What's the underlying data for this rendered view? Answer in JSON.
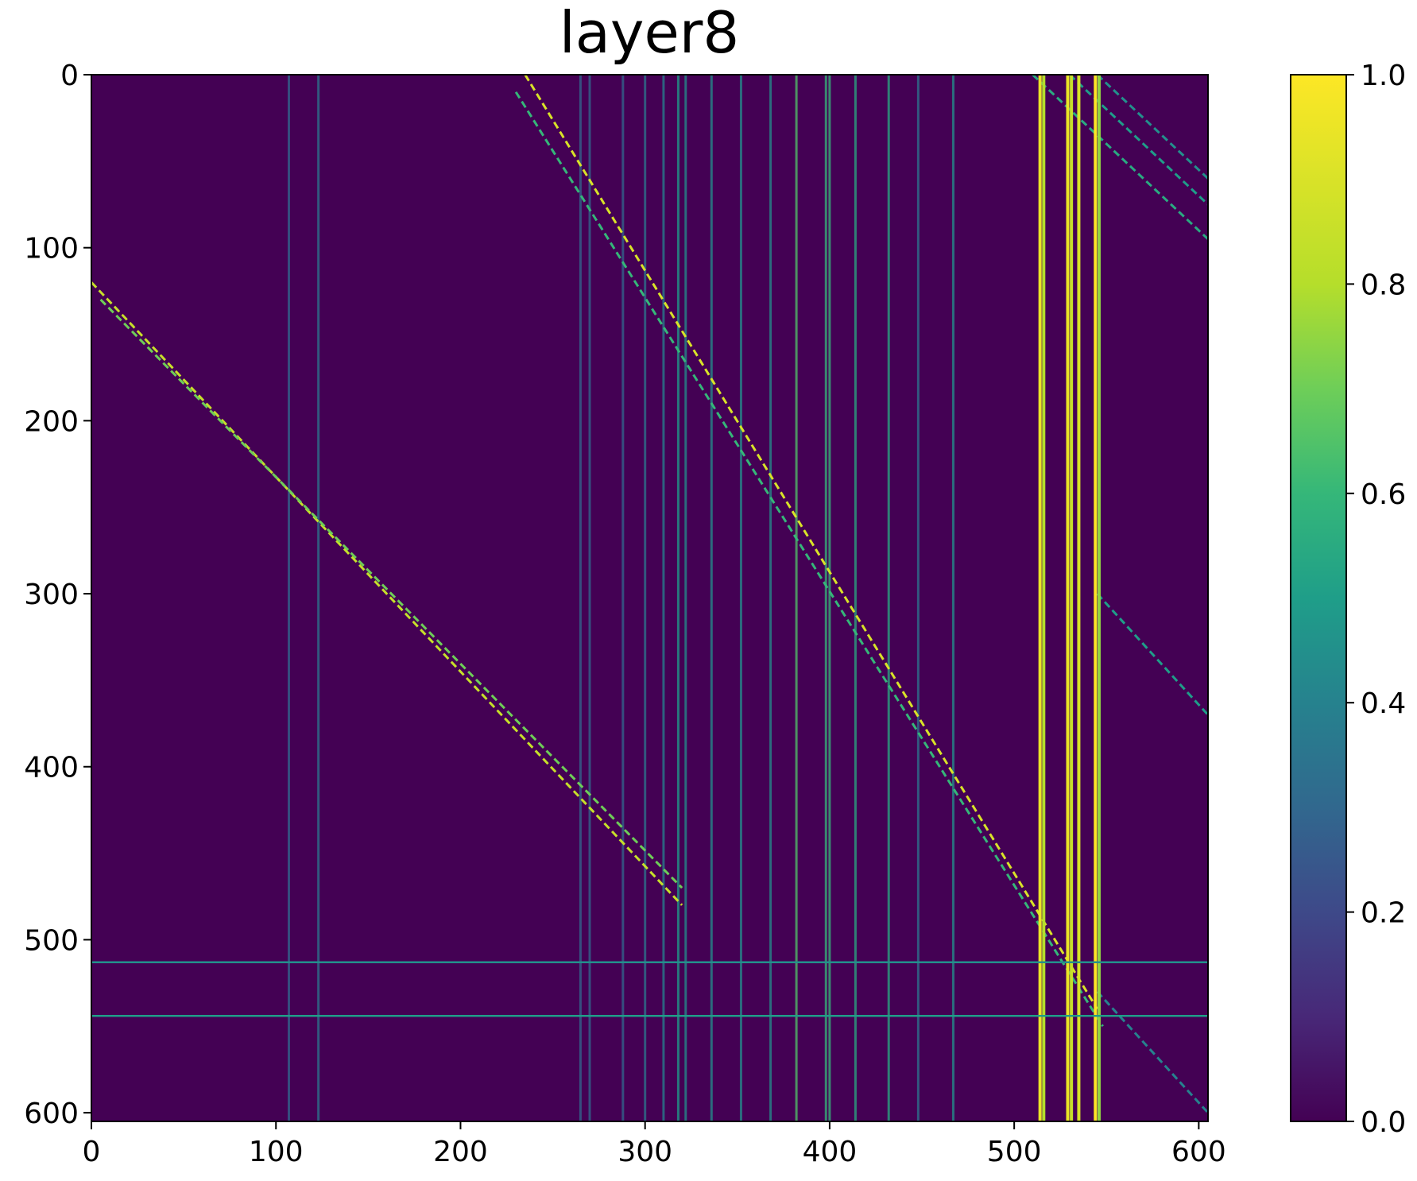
{
  "chart_data": {
    "type": "heatmap",
    "title": "layer8",
    "xlabel": "",
    "ylabel": "",
    "xlim": [
      0,
      605
    ],
    "ylim": [
      605,
      0
    ],
    "x_ticks": [
      "0",
      "100",
      "200",
      "300",
      "400",
      "500",
      "600"
    ],
    "y_ticks": [
      "0",
      "100",
      "200",
      "300",
      "400",
      "500",
      "600"
    ],
    "colormap": "viridis",
    "colorbar": {
      "range": [
        0.0,
        1.0
      ],
      "ticks": [
        "0.0",
        "0.2",
        "0.4",
        "0.6",
        "0.8",
        "1.0"
      ]
    },
    "features": {
      "diagonals": [
        {
          "row_start": 120,
          "col_start": 0,
          "row_end": 480,
          "col_end": 320,
          "intensity": 0.85
        },
        {
          "row_start": 130,
          "col_start": 5,
          "row_end": 470,
          "col_end": 320,
          "intensity": 0.7
        },
        {
          "row_start": 0,
          "col_start": 235,
          "row_end": 540,
          "col_end": 545,
          "intensity": 0.9
        },
        {
          "row_start": 10,
          "col_start": 230,
          "row_end": 550,
          "col_end": 548,
          "intensity": 0.6
        },
        {
          "row_start": 0,
          "col_start": 510,
          "row_end": 95,
          "col_end": 605,
          "intensity": 0.55
        },
        {
          "row_start": 0,
          "col_start": 530,
          "row_end": 75,
          "col_end": 605,
          "intensity": 0.5
        },
        {
          "row_start": 0,
          "col_start": 545,
          "row_end": 60,
          "col_end": 605,
          "intensity": 0.45
        },
        {
          "row_start": 300,
          "col_start": 545,
          "row_end": 370,
          "col_end": 605,
          "intensity": 0.5
        },
        {
          "row_start": 530,
          "col_start": 545,
          "row_end": 600,
          "col_end": 605,
          "intensity": 0.4
        }
      ],
      "bright_columns": [
        {
          "col": 514,
          "intensity": 0.95
        },
        {
          "col": 516,
          "intensity": 0.8
        },
        {
          "col": 529,
          "intensity": 0.95
        },
        {
          "col": 531,
          "intensity": 0.85
        },
        {
          "col": 535,
          "intensity": 0.9
        },
        {
          "col": 544,
          "intensity": 1.0
        },
        {
          "col": 546,
          "intensity": 0.75
        }
      ],
      "medium_columns": [
        {
          "col": 107,
          "intensity": 0.3
        },
        {
          "col": 123,
          "intensity": 0.35
        },
        {
          "col": 265,
          "intensity": 0.3
        },
        {
          "col": 270,
          "intensity": 0.3
        },
        {
          "col": 288,
          "intensity": 0.3
        },
        {
          "col": 300,
          "intensity": 0.35
        },
        {
          "col": 310,
          "intensity": 0.4
        },
        {
          "col": 318,
          "intensity": 0.5
        },
        {
          "col": 322,
          "intensity": 0.45
        },
        {
          "col": 336,
          "intensity": 0.45
        },
        {
          "col": 352,
          "intensity": 0.45
        },
        {
          "col": 368,
          "intensity": 0.45
        },
        {
          "col": 382,
          "intensity": 0.65
        },
        {
          "col": 398,
          "intensity": 0.6
        },
        {
          "col": 400,
          "intensity": 0.6
        },
        {
          "col": 414,
          "intensity": 0.55
        },
        {
          "col": 432,
          "intensity": 0.55
        },
        {
          "col": 448,
          "intensity": 0.35
        },
        {
          "col": 467,
          "intensity": 0.45
        }
      ],
      "horizontal_lines": [
        {
          "row": 513,
          "intensity": 0.45
        },
        {
          "row": 544,
          "intensity": 0.5
        }
      ]
    }
  }
}
